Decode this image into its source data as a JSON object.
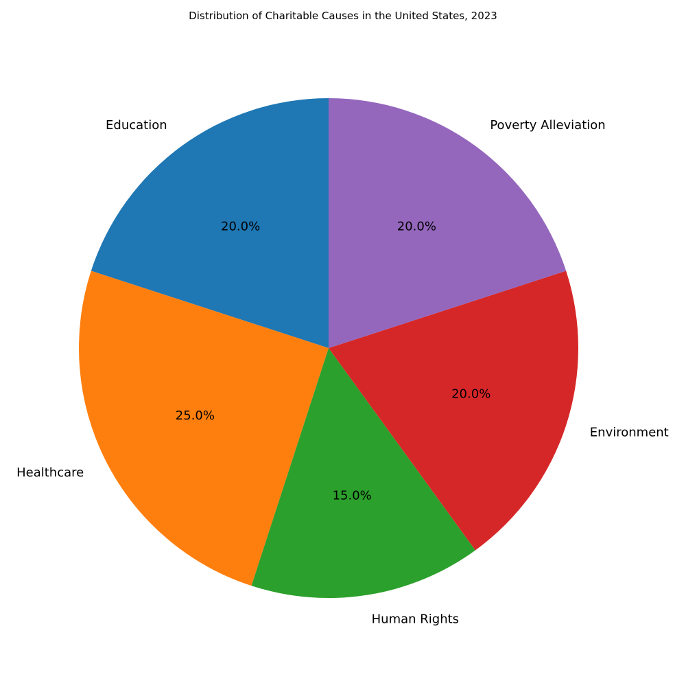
{
  "chart_data": {
    "type": "pie",
    "title": "Distribution of Charitable Causes in the United States, 2023",
    "categories": [
      "Education",
      "Healthcare",
      "Human Rights",
      "Environment",
      "Poverty Alleviation"
    ],
    "values": [
      20,
      25,
      15,
      20,
      20
    ],
    "percent_labels": [
      "20.0%",
      "25.0%",
      "15.0%",
      "20.0%",
      "20.0%"
    ],
    "colors": [
      "#1f77b4",
      "#ff7f0e",
      "#2ca02c",
      "#d62728",
      "#9467bd"
    ],
    "start_angle_deg": 90,
    "direction": "counterclockwise",
    "legend": "none"
  }
}
